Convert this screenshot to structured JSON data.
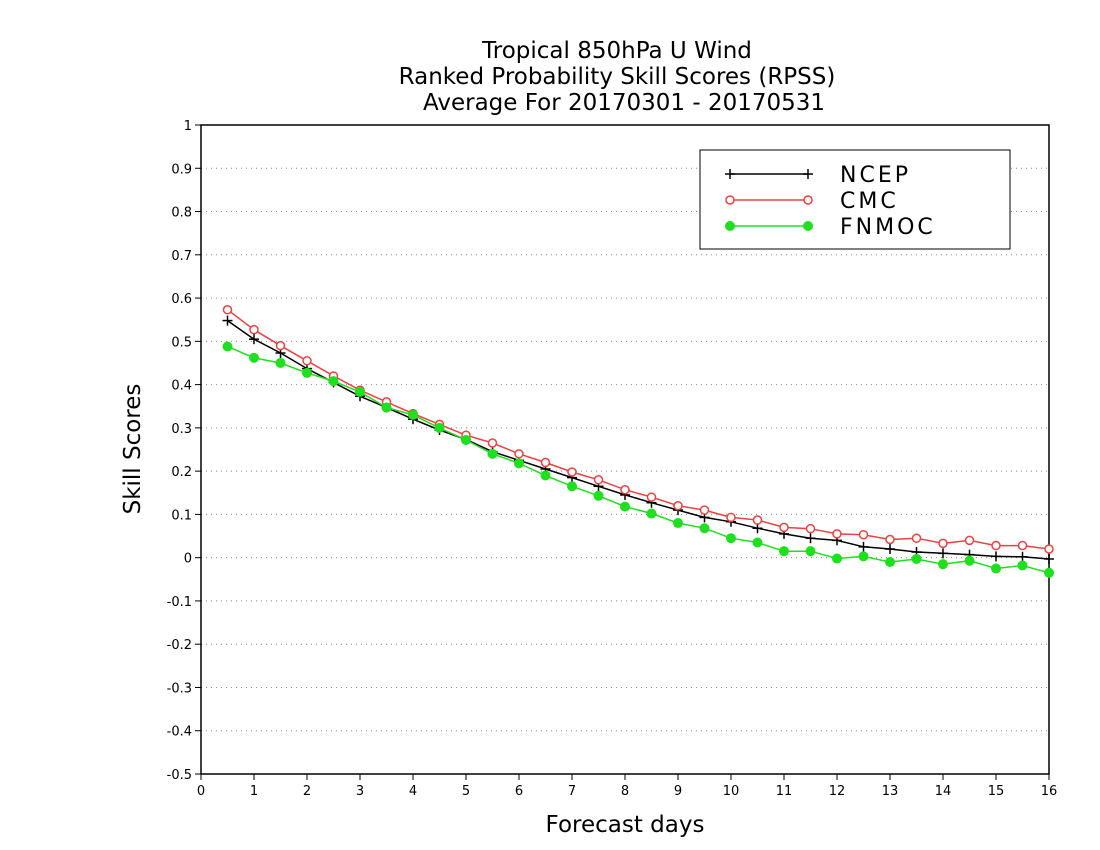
{
  "chart_data": {
    "type": "line",
    "title": [
      "Tropical 850hPa U Wind",
      "Ranked Probability Skill Scores (RPSS)",
      "Average For 20170301 - 20170531"
    ],
    "xlabel": "Forecast days",
    "ylabel": "Skill Scores",
    "xlim": [
      0,
      16
    ],
    "ylim": [
      -0.5,
      1
    ],
    "x_ticks": [
      "0",
      "1",
      "2",
      "3",
      "4",
      "5",
      "6",
      "7",
      "8",
      "9",
      "10",
      "11",
      "12",
      "13",
      "14",
      "15",
      "16"
    ],
    "y_ticks": [
      "1",
      "0.9",
      "0.8",
      "0.7",
      "0.6",
      "0.5",
      "0.4",
      "0.3",
      "0.2",
      "0.1",
      "0",
      "-0.1",
      "-0.2",
      "-0.3",
      "-0.4",
      "-0.5"
    ],
    "grid": true,
    "legend_position": "top-right",
    "x": [
      0.5,
      1,
      1.5,
      2,
      2.5,
      3,
      3.5,
      4,
      4.5,
      5,
      5.5,
      6,
      6.5,
      7,
      7.5,
      8,
      8.5,
      9,
      9.5,
      10,
      10.5,
      11,
      11.5,
      12,
      12.5,
      13,
      13.5,
      14,
      14.5,
      15,
      15.5,
      16
    ],
    "series": [
      {
        "name": "NCEP",
        "color": "#000000",
        "marker": "plus",
        "values": [
          0.548,
          0.505,
          0.473,
          0.437,
          0.405,
          0.373,
          0.347,
          0.32,
          0.295,
          0.273,
          0.245,
          0.225,
          0.205,
          0.185,
          0.165,
          0.145,
          0.127,
          0.11,
          0.093,
          0.083,
          0.068,
          0.055,
          0.045,
          0.04,
          0.025,
          0.02,
          0.013,
          0.01,
          0.007,
          0.003,
          0.002,
          -0.003
        ]
      },
      {
        "name": "CMC",
        "color": "#ee4040",
        "marker": "open-circle",
        "values": [
          0.573,
          0.527,
          0.49,
          0.455,
          0.42,
          0.387,
          0.36,
          0.333,
          0.308,
          0.283,
          0.265,
          0.24,
          0.22,
          0.198,
          0.18,
          0.157,
          0.14,
          0.12,
          0.11,
          0.093,
          0.087,
          0.07,
          0.067,
          0.055,
          0.053,
          0.042,
          0.045,
          0.033,
          0.04,
          0.028,
          0.028,
          0.02
        ]
      },
      {
        "name": "FNMOC",
        "color": "#1ee01e",
        "marker": "filled-circle",
        "values": [
          0.488,
          0.462,
          0.45,
          0.427,
          0.408,
          0.383,
          0.347,
          0.33,
          0.3,
          0.272,
          0.24,
          0.218,
          0.19,
          0.165,
          0.143,
          0.118,
          0.102,
          0.08,
          0.068,
          0.045,
          0.035,
          0.015,
          0.015,
          -0.002,
          0.003,
          -0.01,
          -0.003,
          -0.015,
          -0.007,
          -0.025,
          -0.018,
          -0.035
        ]
      }
    ]
  }
}
